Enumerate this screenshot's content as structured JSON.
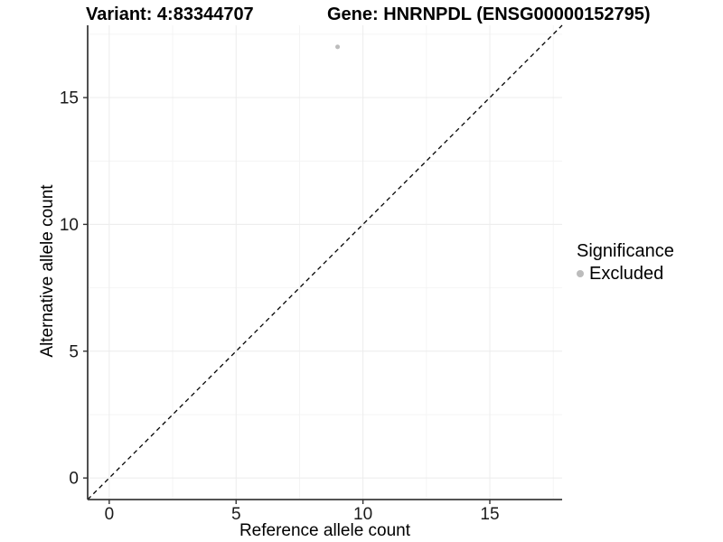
{
  "chart_data": {
    "type": "scatter",
    "title_left": "Variant: 4:83344707",
    "title_right": "Gene: HNRNPDL (ENSG00000152795)",
    "xlabel": "Reference allele count",
    "ylabel": "Alternative allele count",
    "xlim": [
      -0.85,
      17.85
    ],
    "ylim": [
      -0.85,
      17.85
    ],
    "xticks": [
      0,
      5,
      10,
      15
    ],
    "yticks": [
      0,
      5,
      10,
      15
    ],
    "xminor": [
      2.5,
      7.5,
      12.5,
      17.5
    ],
    "yminor": [
      2.5,
      7.5,
      12.5,
      17.5
    ],
    "grid": "major+minor",
    "points": [
      {
        "x": 9,
        "y": 17,
        "series": "Excluded"
      }
    ],
    "reference_line": {
      "slope": 1,
      "intercept": 0,
      "style": "dashed"
    },
    "legend": {
      "title": "Significance",
      "position": "right",
      "items": [
        {
          "label": "Excluded",
          "marker": "circle",
          "color": "#bcbcbc"
        }
      ]
    }
  },
  "colors": {
    "point": "#bcbcbc",
    "reference_line": "#000000",
    "grid_major": "#ececec",
    "grid_minor": "#f4f4f4",
    "axis_line": "#3c3c3c",
    "tick_mark": "#333333",
    "tick_text": "#1a1a1a"
  }
}
